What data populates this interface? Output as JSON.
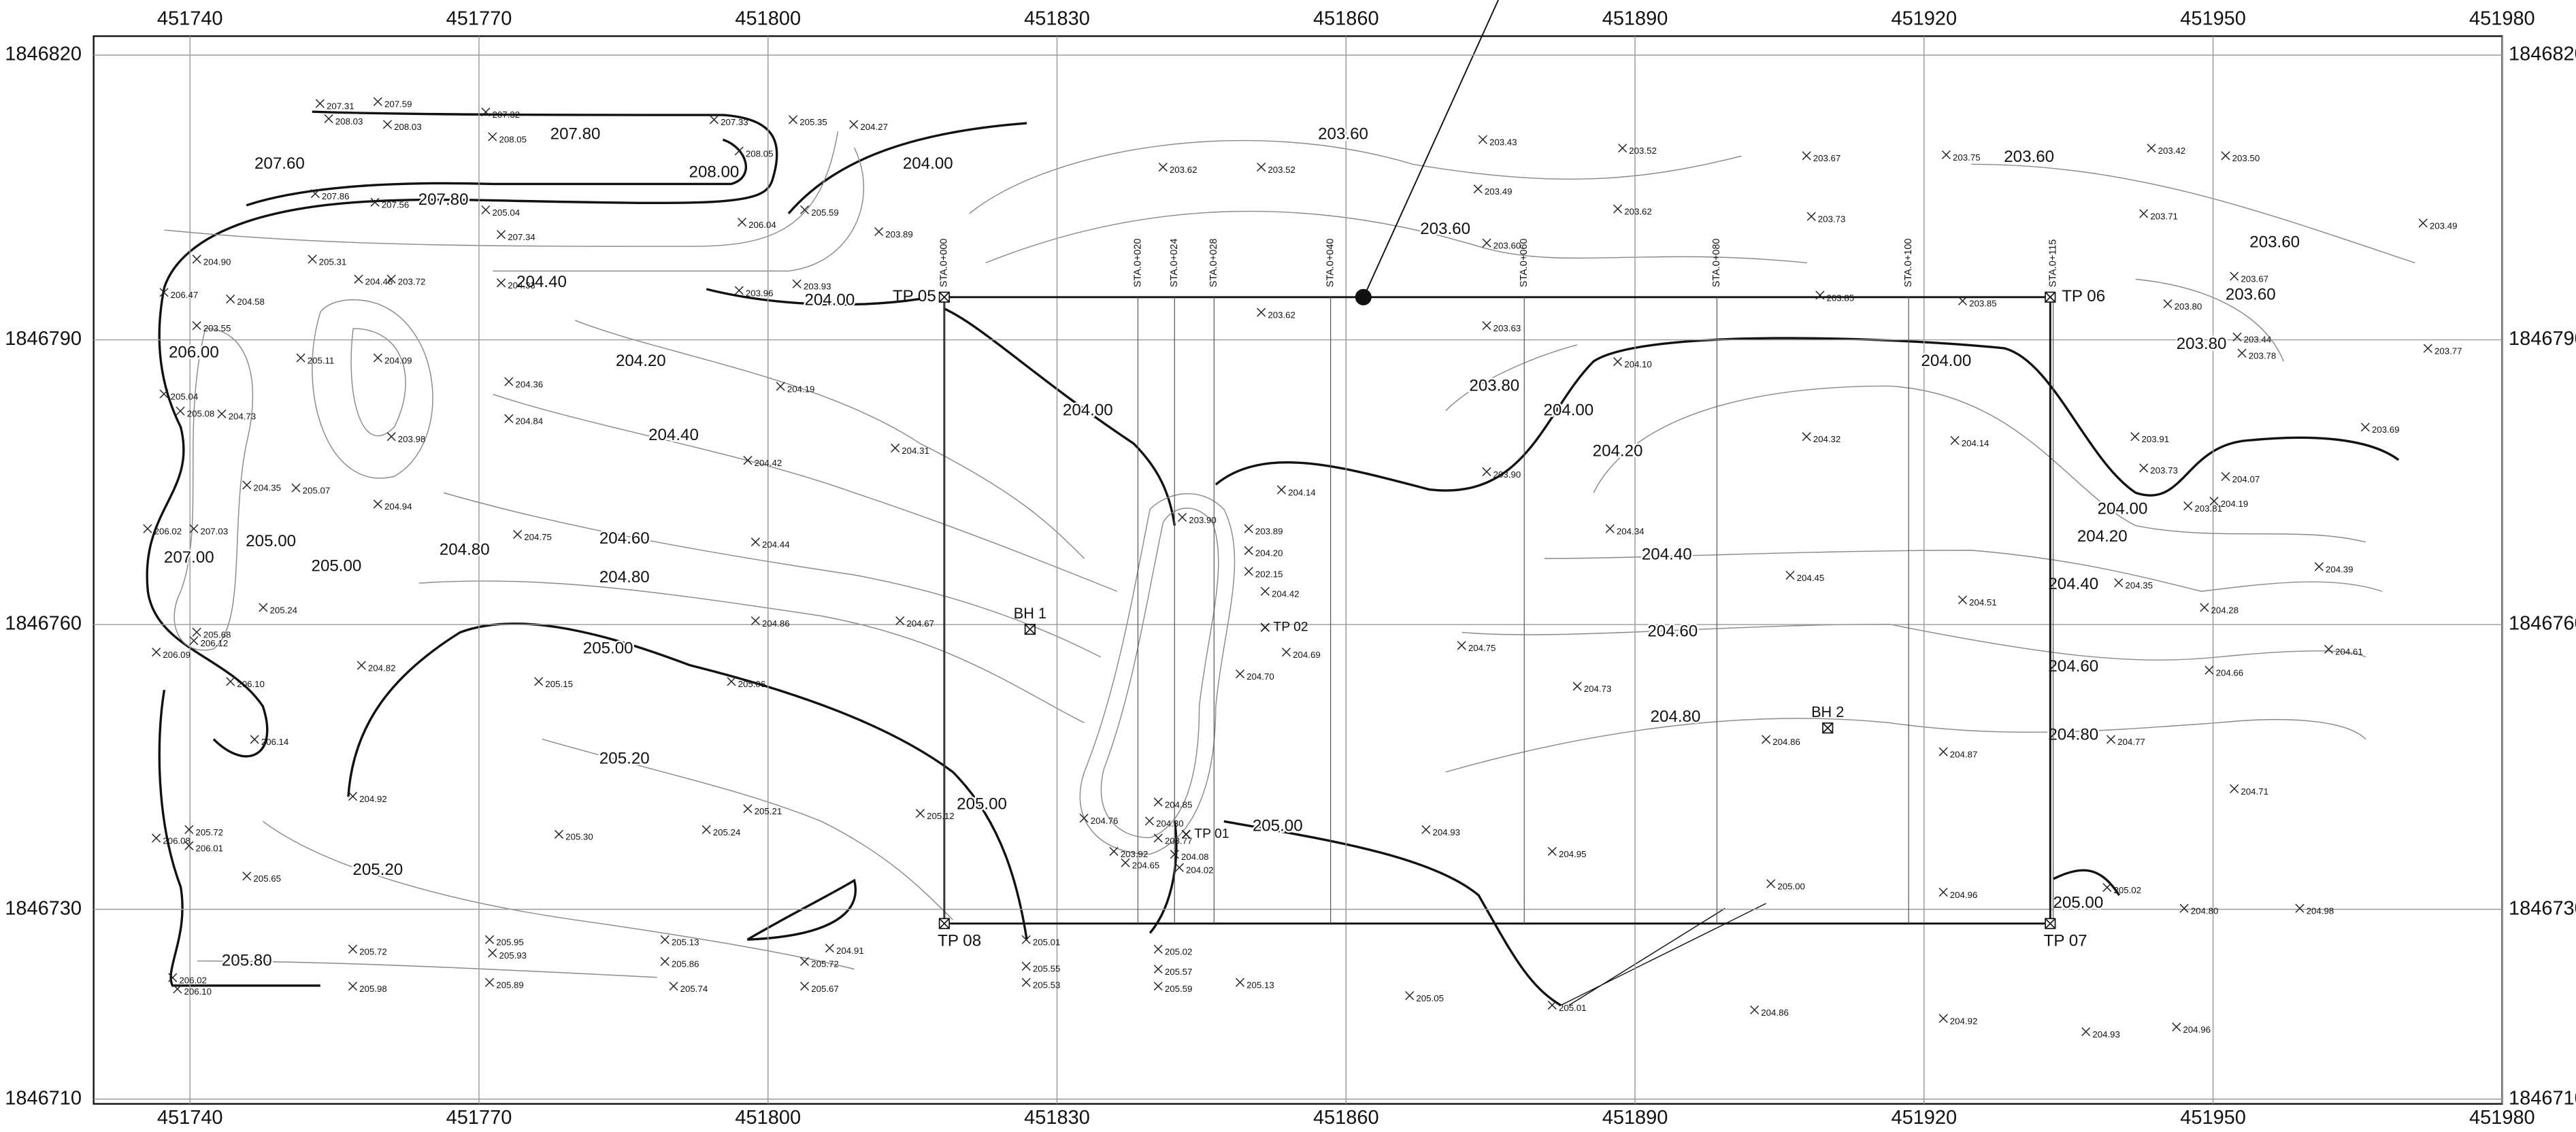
{
  "map": {
    "xlim": [
      451730,
      451980
    ],
    "ylim": [
      1846709.5,
      1846822
    ],
    "xticks": [
      451740,
      451770,
      451800,
      451830,
      451860,
      451890,
      451920,
      451950,
      451980
    ],
    "yticks": [
      1846710,
      1846730,
      1846760,
      1846790,
      1846820
    ],
    "grid": true,
    "test_pits": [
      [
        451818.3,
        1846794.5,
        "TP 05"
      ],
      [
        451933.1,
        1846794.5,
        "TP 06"
      ],
      [
        451933.1,
        1846728.5,
        "TP 07"
      ],
      [
        451818.3,
        1846728.5,
        "TP 08"
      ]
    ],
    "stations": [
      [
        451818.3,
        "STA.0+000"
      ],
      [
        451838.4,
        "STA.0+020"
      ],
      [
        451842.2,
        "STA.0+024"
      ],
      [
        451846.3,
        "STA.0+028"
      ],
      [
        451858.4,
        "STA.0+040"
      ],
      [
        451878.5,
        "STA.0+060"
      ],
      [
        451898.5,
        "STA.0+080"
      ],
      [
        451918.4,
        "STA.0+100"
      ],
      [
        451933.4,
        "STA.0+115"
      ]
    ],
    "control_point": [
      451861.8,
      1846794.5
    ],
    "boreholes": [
      [
        451827.2,
        1846759.5,
        "BH 1"
      ],
      [
        451910.0,
        1846749.1,
        "BH 2"
      ]
    ],
    "markers": [
      [
        451843.4,
        1846737.9,
        "TP 01"
      ],
      [
        451851.6,
        1846759.7,
        "TP 02"
      ]
    ],
    "contour_labels": [
      [
        451749.3,
        1846808.5,
        "207.60"
      ],
      [
        451780.0,
        1846811.6,
        "207.80"
      ],
      [
        451766.3,
        1846804.7,
        "207.80"
      ],
      [
        451794.4,
        1846807.6,
        "208.00"
      ],
      [
        451816.6,
        1846808.5,
        "204.00"
      ],
      [
        451859.7,
        1846811.6,
        "203.60"
      ],
      [
        451806.4,
        1846794.1,
        "204.00"
      ],
      [
        451776.5,
        1846796.0,
        "204.40"
      ],
      [
        451740.4,
        1846788.6,
        "206.00"
      ],
      [
        451748.4,
        1846768.7,
        "205.00"
      ],
      [
        451755.2,
        1846766.1,
        "205.00"
      ],
      [
        451739.9,
        1846767.0,
        "207.00"
      ],
      [
        451786.8,
        1846787.7,
        "204.20"
      ],
      [
        451790.2,
        1846779.9,
        "204.40"
      ],
      [
        451785.1,
        1846769.0,
        "204.60"
      ],
      [
        451785.1,
        1846764.9,
        "204.80"
      ],
      [
        451768.5,
        1846767.8,
        "204.80"
      ],
      [
        451783.4,
        1846757.4,
        "205.00"
      ],
      [
        451785.1,
        1846745.8,
        "205.20"
      ],
      [
        451759.5,
        1846734.1,
        "205.20"
      ],
      [
        451745.9,
        1846724.5,
        "205.80"
      ],
      [
        451833.2,
        1846782.5,
        "204.00"
      ],
      [
        451822.2,
        1846741.0,
        "205.00"
      ],
      [
        451852.9,
        1846738.7,
        "205.00"
      ],
      [
        451870.3,
        1846801.6,
        "203.60"
      ],
      [
        451875.4,
        1846785.1,
        "203.80"
      ],
      [
        451883.1,
        1846782.5,
        "204.00"
      ],
      [
        451888.2,
        1846778.2,
        "204.20"
      ],
      [
        451893.3,
        1846767.3,
        "204.40"
      ],
      [
        451893.9,
        1846759.2,
        "204.60"
      ],
      [
        451894.2,
        1846750.2,
        "204.80"
      ],
      [
        451930.9,
        1846809.2,
        "203.60"
      ],
      [
        451956.4,
        1846800.2,
        "203.60"
      ],
      [
        451953.9,
        1846794.7,
        "203.60"
      ],
      [
        451948.8,
        1846789.5,
        "203.80"
      ],
      [
        451922.3,
        1846787.7,
        "204.00"
      ],
      [
        451940.6,
        1846772.1,
        "204.00"
      ],
      [
        451938.5,
        1846769.2,
        "204.20"
      ],
      [
        451935.5,
        1846764.2,
        "204.40"
      ],
      [
        451935.5,
        1846755.5,
        "204.60"
      ],
      [
        451935.5,
        1846748.3,
        "204.80"
      ],
      [
        451936.0,
        1846730.6,
        "205.00"
      ]
    ],
    "spot_heights": [
      [
        451753.5,
        1846814.9,
        "207.31"
      ],
      [
        451759.5,
        1846815.1,
        "207.59"
      ],
      [
        451754.4,
        1846813.3,
        "208.03"
      ],
      [
        451760.5,
        1846812.7,
        "208.03"
      ],
      [
        451770.7,
        1846814.0,
        "207.32"
      ],
      [
        451771.4,
        1846811.4,
        "208.05"
      ],
      [
        451794.4,
        1846813.2,
        "207.33"
      ],
      [
        451802.6,
        1846813.2,
        "205.35"
      ],
      [
        451808.9,
        1846812.7,
        "204.27"
      ],
      [
        451797.0,
        1846809.9,
        "208.05"
      ],
      [
        451753.0,
        1846805.4,
        "207.86"
      ],
      [
        451759.2,
        1846804.5,
        "207.56"
      ],
      [
        451770.7,
        1846803.7,
        "205.04"
      ],
      [
        451772.3,
        1846801.1,
        "207.34"
      ],
      [
        451797.3,
        1846802.4,
        "206.04"
      ],
      [
        451803.8,
        1846803.7,
        "205.59"
      ],
      [
        451811.5,
        1846801.4,
        "203.89"
      ],
      [
        451740.7,
        1846798.5,
        "204.90"
      ],
      [
        451752.7,
        1846798.5,
        "205.31"
      ],
      [
        451757.5,
        1846796.4,
        "204.46"
      ],
      [
        451760.9,
        1846796.4,
        "203.72"
      ],
      [
        451772.3,
        1846796.0,
        "204.33"
      ],
      [
        451797.0,
        1846795.2,
        "203.96"
      ],
      [
        451803.0,
        1846795.9,
        "203.93"
      ],
      [
        451737.3,
        1846795.0,
        "206.47"
      ],
      [
        451744.2,
        1846794.3,
        "204.58"
      ],
      [
        451740.7,
        1846791.5,
        "203.55"
      ],
      [
        451751.5,
        1846788.1,
        "205.11"
      ],
      [
        451759.5,
        1846788.1,
        "204.09"
      ],
      [
        451773.1,
        1846785.6,
        "204.36"
      ],
      [
        451801.3,
        1846785.1,
        "204.19"
      ],
      [
        451737.3,
        1846784.3,
        "205.04"
      ],
      [
        451739.0,
        1846782.5,
        "205.08"
      ],
      [
        451743.3,
        1846782.2,
        "204.73"
      ],
      [
        451760.9,
        1846779.8,
        "203.98"
      ],
      [
        451773.1,
        1846781.7,
        "204.84"
      ],
      [
        451797.9,
        1846777.3,
        "204.42"
      ],
      [
        451813.2,
        1846778.6,
        "204.31"
      ],
      [
        451745.9,
        1846774.7,
        "204.35"
      ],
      [
        451751.0,
        1846774.4,
        "205.07"
      ],
      [
        451759.5,
        1846772.7,
        "204.94"
      ],
      [
        451774.0,
        1846769.5,
        "204.75"
      ],
      [
        451798.7,
        1846768.7,
        "204.44"
      ],
      [
        451735.6,
        1846770.1,
        "206.02"
      ],
      [
        451740.4,
        1846770.1,
        "207.03"
      ],
      [
        451740.7,
        1846759.2,
        "205.68"
      ],
      [
        451736.5,
        1846757.1,
        "206.09"
      ],
      [
        451740.4,
        1846758.3,
        "206.12"
      ],
      [
        451744.2,
        1846754.0,
        "206.10"
      ],
      [
        451746.7,
        1846747.9,
        "206.14"
      ],
      [
        451747.6,
        1846761.8,
        "205.24"
      ],
      [
        451757.8,
        1846755.7,
        "204.82"
      ],
      [
        451776.2,
        1846754.0,
        "205.15"
      ],
      [
        451798.7,
        1846760.4,
        "204.86"
      ],
      [
        451796.2,
        1846754.0,
        "205.06"
      ],
      [
        451813.7,
        1846760.4,
        "204.67"
      ],
      [
        451756.9,
        1846741.9,
        "204.92"
      ],
      [
        451778.3,
        1846737.9,
        "205.30"
      ],
      [
        451793.6,
        1846738.4,
        "205.24"
      ],
      [
        451797.9,
        1846740.6,
        "205.21"
      ],
      [
        451815.8,
        1846740.1,
        "205.12"
      ],
      [
        451739.9,
        1846738.4,
        "205.72"
      ],
      [
        451736.5,
        1846737.5,
        "206.08"
      ],
      [
        451739.9,
        1846736.7,
        "206.01"
      ],
      [
        451745.9,
        1846733.5,
        "205.65"
      ],
      [
        451738.2,
        1846722.8,
        "206.02"
      ],
      [
        451738.7,
        1846721.6,
        "206.10"
      ],
      [
        451756.9,
        1846725.8,
        "205.72"
      ],
      [
        451756.9,
        1846721.9,
        "205.98"
      ],
      [
        451771.1,
        1846726.8,
        "205.95"
      ],
      [
        451771.4,
        1846725.4,
        "205.93"
      ],
      [
        451771.1,
        1846722.3,
        "205.89"
      ],
      [
        451789.3,
        1846726.8,
        "205.13"
      ],
      [
        451789.3,
        1846724.5,
        "205.86"
      ],
      [
        451790.2,
        1846721.9,
        "205.74"
      ],
      [
        451806.4,
        1846725.9,
        "204.91"
      ],
      [
        451803.8,
        1846724.5,
        "205.72"
      ],
      [
        451803.8,
        1846721.9,
        "205.67"
      ],
      [
        451826.8,
        1846726.8,
        "205.01"
      ],
      [
        451826.8,
        1846724.0,
        "205.55"
      ],
      [
        451826.8,
        1846722.3,
        "205.53"
      ],
      [
        451840.5,
        1846725.8,
        "205.02"
      ],
      [
        451840.5,
        1846723.7,
        "205.57"
      ],
      [
        451840.5,
        1846721.9,
        "205.59"
      ],
      [
        451849.0,
        1846722.3,
        "205.13"
      ],
      [
        451866.6,
        1846720.9,
        "205.05"
      ],
      [
        451881.4,
        1846719.9,
        "205.01"
      ],
      [
        451902.4,
        1846719.4,
        "204.86"
      ],
      [
        451922.0,
        1846718.5,
        "204.92"
      ],
      [
        451936.8,
        1846717.1,
        "204.93"
      ],
      [
        451946.2,
        1846717.6,
        "204.96"
      ],
      [
        451904.1,
        1846732.7,
        "205.00"
      ],
      [
        451922.0,
        1846731.8,
        "204.96"
      ],
      [
        451947.0,
        1846730.1,
        "204.80"
      ],
      [
        451959.0,
        1846730.1,
        "204.98"
      ],
      [
        451939.0,
        1846732.3,
        "205.02"
      ],
      [
        451868.3,
        1846738.4,
        "204.93"
      ],
      [
        451881.4,
        1846736.1,
        "204.95"
      ],
      [
        451903.6,
        1846747.9,
        "204.86"
      ],
      [
        451922.0,
        1846746.6,
        "204.87"
      ],
      [
        451939.4,
        1846747.9,
        "204.77"
      ],
      [
        451952.2,
        1846742.7,
        "204.71"
      ],
      [
        451884.0,
        1846753.5,
        "204.73"
      ],
      [
        451872.0,
        1846757.8,
        "204.75"
      ],
      [
        451906.1,
        1846765.2,
        "204.45"
      ],
      [
        451887.4,
        1846770.1,
        "204.34"
      ],
      [
        451924.0,
        1846762.6,
        "204.51"
      ],
      [
        451940.2,
        1846764.4,
        "204.35"
      ],
      [
        451949.1,
        1846761.8,
        "204.28"
      ],
      [
        451949.6,
        1846755.2,
        "204.66"
      ],
      [
        451961.0,
        1846766.1,
        "204.39"
      ],
      [
        451962.0,
        1846757.4,
        "204.61"
      ],
      [
        451907.8,
        1846779.8,
        "204.32"
      ],
      [
        451923.2,
        1846779.4,
        "204.14"
      ],
      [
        451941.9,
        1846779.8,
        "203.91"
      ],
      [
        451942.8,
        1846776.5,
        "203.73"
      ],
      [
        451947.4,
        1846772.5,
        "203.81"
      ],
      [
        451951.3,
        1846775.6,
        "204.07"
      ],
      [
        451950.1,
        1846773.0,
        "204.19"
      ],
      [
        451965.8,
        1846780.8,
        "203.69"
      ],
      [
        451972.3,
        1846789.1,
        "203.77"
      ],
      [
        451952.2,
        1846796.7,
        "203.67"
      ],
      [
        451952.5,
        1846790.3,
        "203.44"
      ],
      [
        451953.0,
        1846788.6,
        "203.78"
      ],
      [
        451945.3,
        1846793.8,
        "203.80"
      ],
      [
        451942.8,
        1846803.3,
        "203.71"
      ],
      [
        451943.6,
        1846810.2,
        "203.42"
      ],
      [
        451951.3,
        1846809.4,
        "203.50"
      ],
      [
        451971.8,
        1846802.3,
        "203.49"
      ],
      [
        451922.3,
        1846809.5,
        "203.75"
      ],
      [
        451907.8,
        1846809.4,
        "203.67"
      ],
      [
        451908.3,
        1846803.0,
        "203.73"
      ],
      [
        451909.2,
        1846794.7,
        "203.85"
      ],
      [
        451924.0,
        1846794.1,
        "203.85"
      ],
      [
        451888.7,
        1846810.2,
        "203.52"
      ],
      [
        451888.2,
        1846803.8,
        "203.62"
      ],
      [
        451888.2,
        1846787.7,
        "204.10"
      ],
      [
        451874.2,
        1846811.1,
        "203.43"
      ],
      [
        451873.7,
        1846805.9,
        "203.49"
      ],
      [
        451874.6,
        1846800.2,
        "203.60"
      ],
      [
        451874.6,
        1846791.5,
        "203.63"
      ],
      [
        451874.6,
        1846776.1,
        "203.90"
      ],
      [
        451841.0,
        1846808.2,
        "203.62"
      ],
      [
        451851.2,
        1846808.2,
        "203.52"
      ],
      [
        451851.2,
        1846792.9,
        "203.62"
      ],
      [
        451853.3,
        1846774.2,
        "204.14"
      ],
      [
        451853.8,
        1846757.1,
        "204.69"
      ],
      [
        451843.0,
        1846771.3,
        "203.90"
      ],
      [
        451849.9,
        1846770.1,
        "203.89"
      ],
      [
        451849.9,
        1846767.8,
        "204.20"
      ],
      [
        451849.9,
        1846765.6,
        "202.15"
      ],
      [
        451851.6,
        1846763.5,
        "204.42"
      ],
      [
        451849.0,
        1846754.8,
        "204.70"
      ],
      [
        451840.5,
        1846737.5,
        "203.77"
      ],
      [
        451842.2,
        1846735.8,
        "204.08"
      ],
      [
        451842.7,
        1846734.4,
        "204.02"
      ],
      [
        451835.9,
        1846736.1,
        "203.92"
      ],
      [
        451837.1,
        1846734.9,
        "204.65"
      ],
      [
        451832.8,
        1846739.6,
        "204.76"
      ],
      [
        451840.5,
        1846741.3,
        "204.85"
      ],
      [
        451839.6,
        1846739.3,
        "204.30"
      ]
    ]
  }
}
